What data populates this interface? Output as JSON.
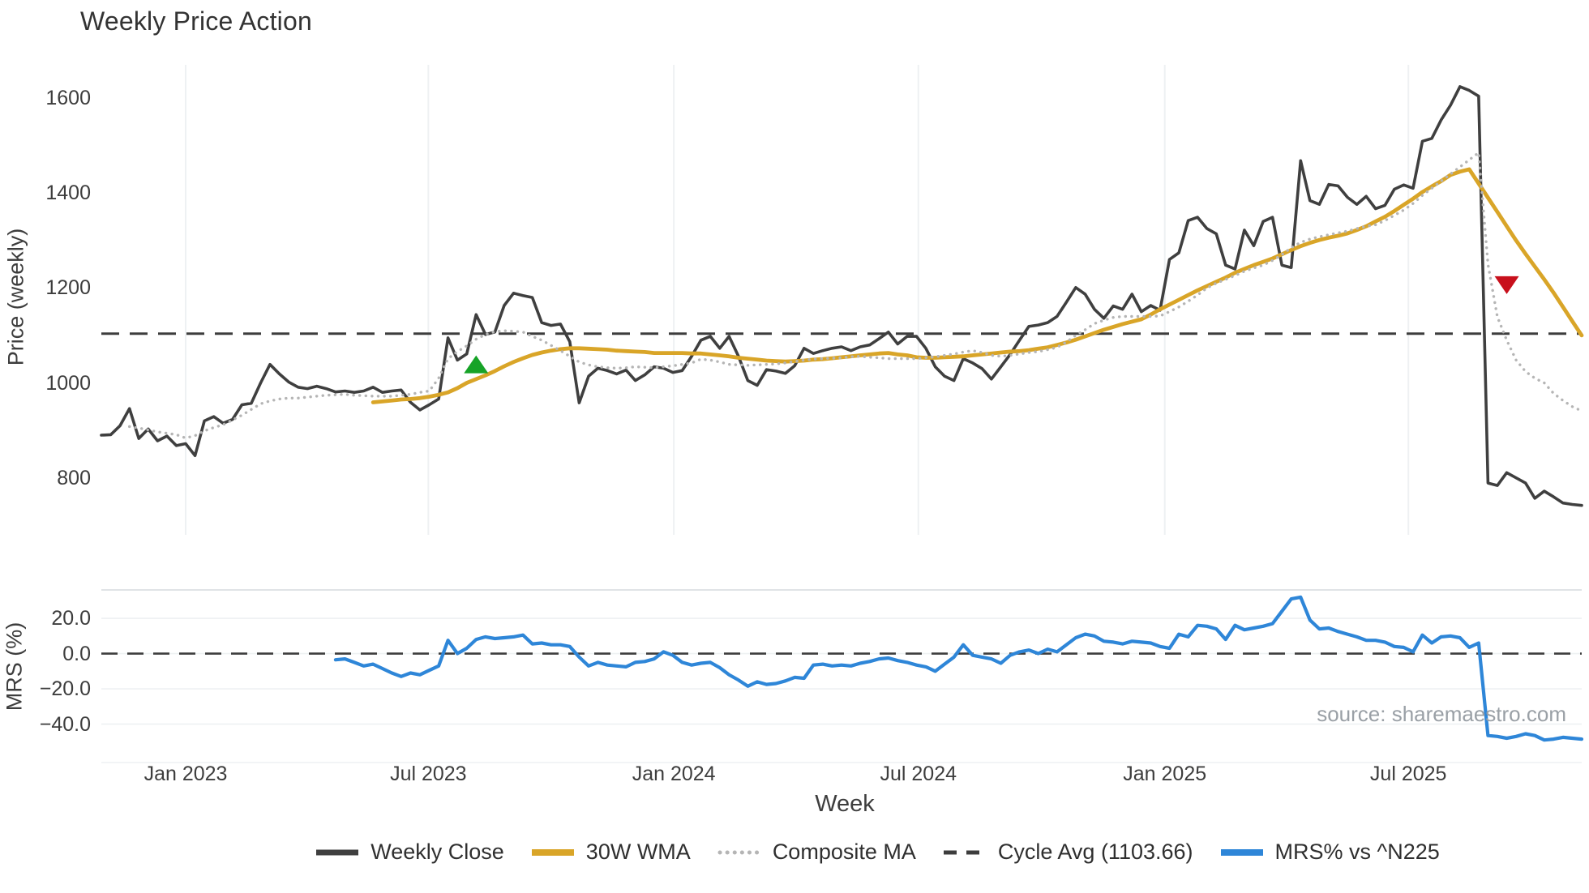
{
  "title": "Weekly Price Action",
  "source_note": "source: sharemaestro.com",
  "colors": {
    "weekly_close": "#3f3f3f",
    "wma_30w": "#d9a528",
    "composite_ma": "#b5b5b5",
    "cycle_avg": "#3d3d3d",
    "mrs": "#2e86d8",
    "buy_marker": "#16a327",
    "sell_marker": "#c8101c",
    "grid": "#eef1f3",
    "panel_border": "#d6dadd",
    "tick_text": "#3d3d3d",
    "source_text": "#9aa0a6"
  },
  "legend": {
    "items": [
      {
        "label": "Weekly Close",
        "swatch": "solid",
        "color_key": "weekly_close"
      },
      {
        "label": "30W WMA",
        "swatch": "solid-thick",
        "color_key": "wma_30w"
      },
      {
        "label": "Composite MA",
        "swatch": "dotted",
        "color_key": "composite_ma"
      },
      {
        "label": "Cycle Avg (1103.66)",
        "swatch": "dashed",
        "color_key": "cycle_avg"
      },
      {
        "label": "MRS% vs ^N225",
        "swatch": "solid-thick",
        "color_key": "mrs"
      }
    ]
  },
  "chart_data": [
    {
      "type": "line",
      "panel": "price",
      "title": "Weekly Price Action",
      "ylabel": "Price (weekly)",
      "xlabel": "Week",
      "ylim": [
        680,
        1670
      ],
      "x_range_weeks": [
        0,
        158
      ],
      "grid": "vertical-only",
      "yticks": [
        {
          "value": 800,
          "label": "800"
        },
        {
          "value": 1000,
          "label": "1000"
        },
        {
          "value": 1200,
          "label": "1200"
        },
        {
          "value": 1400,
          "label": "1400"
        },
        {
          "value": 1600,
          "label": "1600"
        }
      ],
      "xticks": [
        {
          "week": 9.0,
          "label": "Jan 2023"
        },
        {
          "week": 34.9,
          "label": "Jul 2023"
        },
        {
          "week": 61.1,
          "label": "Jan 2024"
        },
        {
          "week": 87.2,
          "label": "Jul 2024"
        },
        {
          "week": 113.5,
          "label": "Jan 2025"
        },
        {
          "week": 139.5,
          "label": "Jul 2025"
        }
      ],
      "series": [
        {
          "name": "Weekly Close",
          "style": "solid",
          "width": 3.6,
          "color_key": "weekly_close",
          "x_start": 0,
          "values": [
            890,
            891,
            910,
            946,
            883,
            903,
            878,
            888,
            868,
            872,
            847,
            920,
            929,
            915,
            923,
            954,
            957,
            1000,
            1039,
            1019,
            1002,
            991,
            988,
            993,
            988,
            981,
            983,
            980,
            983,
            991,
            980,
            983,
            985,
            959,
            943,
            954,
            966,
            1095,
            1048,
            1061,
            1144,
            1102,
            1107,
            1163,
            1189,
            1184,
            1180,
            1127,
            1121,
            1124,
            1087,
            958,
            1014,
            1031,
            1026,
            1019,
            1027,
            1005,
            1017,
            1034,
            1031,
            1022,
            1026,
            1056,
            1090,
            1098,
            1073,
            1098,
            1056,
            1005,
            995,
            1028,
            1025,
            1020,
            1036,
            1073,
            1062,
            1068,
            1073,
            1076,
            1068,
            1076,
            1080,
            1093,
            1107,
            1082,
            1098,
            1098,
            1073,
            1034,
            1014,
            1005,
            1051,
            1042,
            1030,
            1008,
            1034,
            1060,
            1090,
            1119,
            1122,
            1127,
            1140,
            1170,
            1201,
            1187,
            1155,
            1136,
            1162,
            1155,
            1187,
            1150,
            1163,
            1153,
            1260,
            1274,
            1342,
            1349,
            1325,
            1314,
            1248,
            1240,
            1322,
            1289,
            1340,
            1349,
            1248,
            1243,
            1468,
            1384,
            1376,
            1418,
            1415,
            1391,
            1376,
            1393,
            1367,
            1374,
            1408,
            1417,
            1410,
            1509,
            1515,
            1554,
            1585,
            1624,
            1616,
            1604,
            789,
            784,
            811,
            800,
            789,
            757,
            772,
            760,
            747,
            744,
            742
          ]
        },
        {
          "name": "30W WMA",
          "style": "solid",
          "width": 4.8,
          "color_key": "wma_30w",
          "x_start": 29,
          "values": [
            959,
            961,
            963,
            965,
            966,
            968,
            971,
            975,
            980,
            989,
            1000,
            1008,
            1016,
            1025,
            1035,
            1044,
            1052,
            1059,
            1064,
            1068,
            1071,
            1073,
            1073,
            1072,
            1071,
            1070,
            1068,
            1067,
            1066,
            1065,
            1063,
            1063,
            1063,
            1063,
            1062,
            1062,
            1060,
            1058,
            1056,
            1053,
            1051,
            1049,
            1047,
            1046,
            1045,
            1046,
            1047,
            1049,
            1050,
            1052,
            1054,
            1056,
            1058,
            1060,
            1062,
            1063,
            1060,
            1058,
            1054,
            1053,
            1053,
            1054,
            1055,
            1056,
            1058,
            1060,
            1062,
            1064,
            1066,
            1067,
            1069,
            1072,
            1075,
            1080,
            1085,
            1091,
            1098,
            1105,
            1112,
            1118,
            1124,
            1129,
            1134,
            1144,
            1155,
            1165,
            1175,
            1185,
            1195,
            1204,
            1213,
            1222,
            1232,
            1240,
            1248,
            1255,
            1262,
            1271,
            1280,
            1288,
            1295,
            1301,
            1306,
            1310,
            1315,
            1322,
            1330,
            1340,
            1350,
            1362,
            1375,
            1388,
            1402,
            1414,
            1425,
            1438,
            1445,
            1450,
            1420,
            1390,
            1360,
            1330,
            1300,
            1272,
            1245,
            1218,
            1190,
            1160,
            1130,
            1100
          ]
        },
        {
          "name": "Composite MA",
          "style": "dotted",
          "width": 3.4,
          "color_key": "composite_ma",
          "x_start": 3,
          "values": [
            908,
            905,
            901,
            897,
            894,
            891,
            884,
            889,
            899,
            906,
            912,
            922,
            932,
            944,
            956,
            962,
            966,
            968,
            968,
            970,
            972,
            974,
            975,
            976,
            974,
            973,
            972,
            972,
            972,
            974,
            976,
            980,
            983,
            1010,
            1051,
            1066,
            1078,
            1092,
            1102,
            1108,
            1110,
            1109,
            1107,
            1098,
            1090,
            1079,
            1068,
            1056,
            1044,
            1038,
            1034,
            1032,
            1031,
            1032,
            1034,
            1033,
            1032,
            1034,
            1036,
            1039,
            1042,
            1050,
            1048,
            1044,
            1039,
            1038,
            1037,
            1038,
            1039,
            1040,
            1042,
            1045,
            1048,
            1050,
            1051,
            1052,
            1053,
            1055,
            1056,
            1054,
            1053,
            1051,
            1051,
            1051,
            1051,
            1053,
            1055,
            1058,
            1061,
            1065,
            1068,
            1064,
            1058,
            1056,
            1058,
            1061,
            1064,
            1066,
            1070,
            1075,
            1086,
            1100,
            1112,
            1125,
            1132,
            1138,
            1140,
            1140,
            1140,
            1140,
            1141,
            1150,
            1160,
            1172,
            1185,
            1200,
            1210,
            1218,
            1226,
            1235,
            1242,
            1248,
            1258,
            1270,
            1285,
            1296,
            1303,
            1308,
            1312,
            1316,
            1320,
            1325,
            1330,
            1333,
            1342,
            1353,
            1364,
            1378,
            1395,
            1410,
            1425,
            1440,
            1455,
            1470,
            1485,
            1250,
            1139,
            1090,
            1048,
            1024,
            1010,
            1000,
            978,
            963,
            950,
            941
          ]
        },
        {
          "name": "Cycle Avg (1103.66)",
          "style": "dashed",
          "width": 3,
          "color_key": "cycle_avg",
          "hline": 1103.66
        }
      ],
      "markers": [
        {
          "shape": "triangle-up",
          "color_key": "buy_marker",
          "week": 40,
          "value": 1039
        },
        {
          "shape": "triangle-down",
          "color_key": "sell_marker",
          "week": 150,
          "value": 1206
        }
      ]
    },
    {
      "type": "line",
      "panel": "mrs",
      "ylabel": "MRS (%)",
      "ylim": [
        -61.8,
        36.1
      ],
      "grid": "horizontal-only",
      "hline_dashed": 0,
      "yticks": [
        {
          "value": 20,
          "label": "20.0"
        },
        {
          "value": 0,
          "label": "0.0"
        },
        {
          "value": -20,
          "label": "−20.0"
        },
        {
          "value": -40,
          "label": "−40.0"
        }
      ],
      "series": [
        {
          "name": "MRS% vs ^N225",
          "style": "solid",
          "width": 4.2,
          "color_key": "mrs",
          "x_start": 25,
          "values": [
            -3.5,
            -3,
            -5,
            -7,
            -6,
            -8.5,
            -11,
            -13,
            -11,
            -12,
            -9.5,
            -7,
            7.5,
            0,
            3,
            8,
            9.5,
            8.5,
            9,
            9.5,
            10.5,
            5.5,
            6,
            5,
            5,
            4,
            -2,
            -7,
            -5,
            -6.5,
            -7,
            -7.5,
            -5,
            -4.5,
            -3,
            1,
            -1,
            -5,
            -6.5,
            -5.5,
            -5,
            -8,
            -12,
            -15,
            -18.5,
            -16,
            -17.5,
            -17,
            -15.5,
            -13.5,
            -14,
            -6.5,
            -6,
            -7,
            -6.5,
            -7,
            -5.5,
            -4.5,
            -3,
            -2.5,
            -4,
            -5,
            -6.5,
            -7.5,
            -10,
            -6,
            -2,
            5,
            -1,
            -2,
            -3,
            -5.5,
            -1,
            1,
            2,
            0,
            2.5,
            1,
            5,
            9,
            11,
            10,
            7,
            6.5,
            5.5,
            7,
            6.5,
            6,
            4,
            3,
            11,
            9.5,
            16,
            15.5,
            14,
            8,
            16,
            13.5,
            14.5,
            15.5,
            17,
            24,
            31,
            32,
            19,
            14,
            14.5,
            12.5,
            11,
            9.5,
            7.5,
            7.5,
            6.5,
            4,
            3.5,
            1,
            10.5,
            6,
            9.5,
            10,
            9,
            3.5,
            6,
            -46.5,
            -47,
            -48,
            -47,
            -45.5,
            -46.5,
            -49,
            -48.5,
            -47.5,
            -48,
            -48.5
          ]
        }
      ]
    }
  ]
}
